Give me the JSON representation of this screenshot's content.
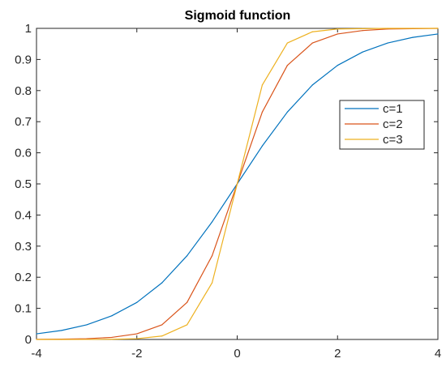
{
  "chart_data": {
    "type": "line",
    "title": "Sigmoid function",
    "xlabel": "",
    "ylabel": "",
    "xlim": [
      -4,
      4
    ],
    "ylim": [
      0,
      1
    ],
    "x_ticks": [
      "-4",
      "-2",
      "0",
      "2",
      "4"
    ],
    "y_ticks": [
      "0",
      "0.1",
      "0.2",
      "0.3",
      "0.4",
      "0.5",
      "0.6",
      "0.7",
      "0.8",
      "0.9",
      "1"
    ],
    "grid": false,
    "legend_position": "right",
    "x": [
      -4,
      -3.5,
      -3,
      -2.5,
      -2,
      -1.5,
      -1,
      -0.5,
      0,
      0.5,
      1,
      1.5,
      2,
      2.5,
      3,
      3.5,
      4
    ],
    "series": [
      {
        "name": "c=1",
        "color": "#0072BD",
        "values": [
          0.018,
          0.029,
          0.047,
          0.076,
          0.119,
          0.182,
          0.269,
          0.378,
          0.5,
          0.622,
          0.731,
          0.818,
          0.881,
          0.924,
          0.953,
          0.971,
          0.982
        ]
      },
      {
        "name": "c=2",
        "color": "#D95319",
        "values": [
          0.0003,
          0.0009,
          0.0025,
          0.0067,
          0.018,
          0.047,
          0.119,
          0.269,
          0.5,
          0.731,
          0.881,
          0.953,
          0.982,
          0.993,
          0.998,
          0.999,
          1.0
        ]
      },
      {
        "name": "c=3",
        "color": "#EDB120",
        "values": [
          0.0,
          0.0,
          0.0001,
          0.0006,
          0.0025,
          0.011,
          0.047,
          0.182,
          0.5,
          0.818,
          0.953,
          0.989,
          0.998,
          0.999,
          1.0,
          1.0,
          1.0
        ]
      }
    ]
  }
}
